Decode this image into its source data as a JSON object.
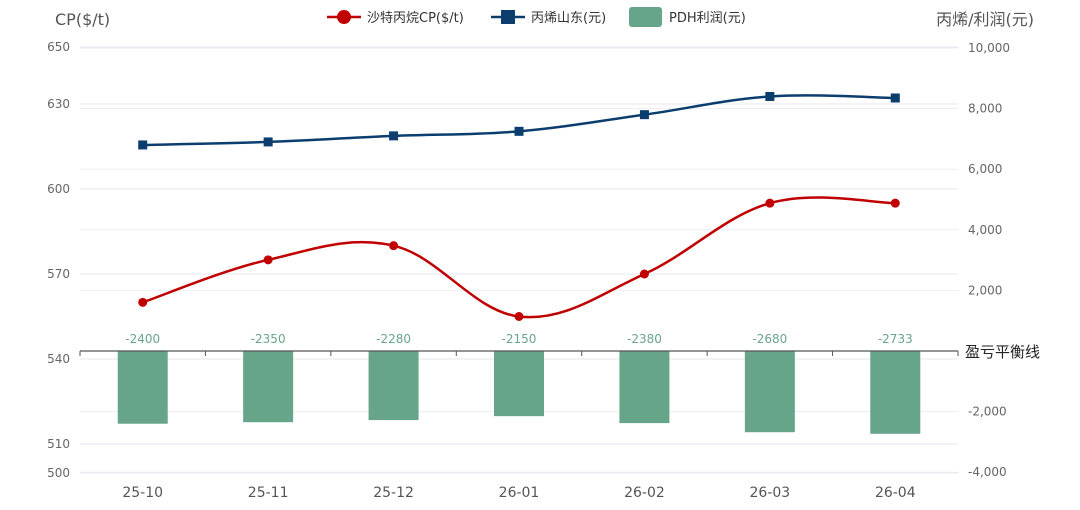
{
  "chart_data": {
    "type": "combo",
    "categories": [
      "25-10",
      "25-11",
      "25-12",
      "26-01",
      "26-02",
      "26-03",
      "26-04"
    ],
    "left_axis": {
      "title": "CP($/t)",
      "ticks": [
        500,
        510,
        540,
        570,
        600,
        630,
        650
      ]
    },
    "right_axis": {
      "title": "丙烯/利润(元)",
      "ticks": [
        -4000,
        -2000,
        2000,
        4000,
        6000,
        8000,
        10000
      ],
      "tick_labels": [
        "-4,000",
        "-2,000",
        "2,000",
        "4,000",
        "6,000",
        "8,000",
        "10,000"
      ]
    },
    "series": [
      {
        "name": "沙特丙烷CP($/t)",
        "type": "line",
        "axis": "left",
        "color": "#c00000",
        "marker": "circle",
        "values": [
          560,
          575,
          580,
          555,
          570,
          595,
          595
        ]
      },
      {
        "name": "丙烯山东(元)",
        "type": "line",
        "axis": "right",
        "color": "#0b3d6e",
        "marker": "square",
        "values": [
          6800,
          6900,
          7100,
          7250,
          7800,
          8400,
          8350
        ]
      },
      {
        "name": "PDH利润(元)",
        "type": "bar",
        "axis": "right",
        "color": "#67a58a",
        "values": [
          -2400,
          -2350,
          -2280,
          -2150,
          -2380,
          -2680,
          -2733
        ],
        "labels": [
          "-2400",
          "-2350",
          "-2280",
          "-2150",
          "-2380",
          "-2680",
          "-2733"
        ]
      }
    ],
    "breakeven_label": "盈亏平衡线",
    "legend_position": "top-center",
    "grid": true
  }
}
